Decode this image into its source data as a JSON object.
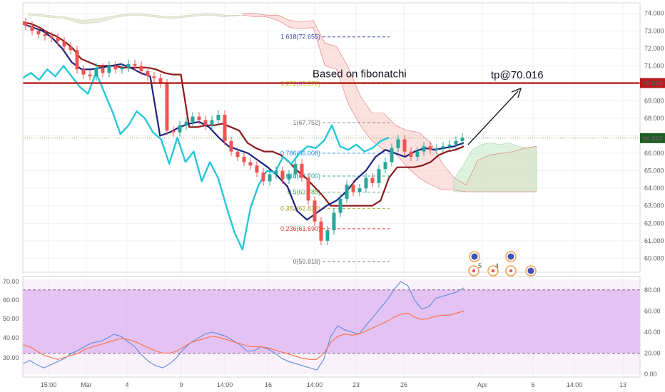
{
  "chart_data": [
    {
      "type": "candlestick",
      "title": "",
      "ylim": [
        59.2,
        74.6
      ],
      "grid": true,
      "y_ticks": [
        "74.000",
        "73.000",
        "72.000",
        "71.000",
        "70.000",
        "69.000",
        "68.000",
        "67.000",
        "66.000",
        "65.000",
        "64.000",
        "63.000",
        "62.000",
        "61.000",
        "60.000"
      ],
      "x_ticks": [
        "15:00",
        "Mar",
        "4",
        "9",
        "14:00",
        "16",
        "14:00",
        "23",
        "26",
        "Apr",
        "6",
        "14:00",
        "13"
      ],
      "price_badges": [
        {
          "label": "70.016",
          "value": 70.016,
          "color": "#b71c1c"
        },
        {
          "label": "66.867",
          "value": 66.867,
          "color": "#1b5e20"
        }
      ],
      "fibonacci": [
        {
          "label": "1.618(72.655)",
          "value": 72.655,
          "color": "#3949ab"
        },
        {
          "label": "1.272(69.970)",
          "value": 69.97,
          "color": "#b8b800"
        },
        {
          "label": "1(67.752)",
          "value": 67.752,
          "color": "#757575"
        },
        {
          "label": "0.786(66.008)",
          "value": 66.008,
          "color": "#1e88e5"
        },
        {
          "label": "0.618(64.700)",
          "value": 64.7,
          "color": "#26a69a"
        },
        {
          "label": "0.5(63.785)",
          "value": 63.785,
          "color": "#43a047"
        },
        {
          "label": "0.382(62.838)",
          "value": 62.838,
          "color": "#9e9d24"
        },
        {
          "label": "0.236(61.690)",
          "value": 61.69,
          "color": "#e53935"
        },
        {
          "label": "0(59.818)",
          "value": 59.818,
          "color": "#757575"
        }
      ],
      "annotations": [
        {
          "text": "Based on fibonatchi"
        },
        {
          "text": "tp@70.016"
        }
      ],
      "event_markers": [
        "5",
        "4"
      ],
      "series": [
        {
          "name": "",
          "kind": "candles_close",
          "values": [
            73.3,
            73.0,
            72.8,
            72.7,
            72.6,
            72.4,
            72.1,
            71.9,
            70.8,
            70.5,
            70.4,
            70.9,
            70.6,
            71.0,
            70.8,
            70.9,
            71.1,
            71.0,
            70.7,
            70.4,
            70.3,
            70.0,
            67.3,
            67.2,
            67.6,
            67.8,
            68.1,
            67.9,
            67.6,
            67.9,
            68.2,
            66.7,
            66.1,
            65.8,
            65.5,
            65.3,
            64.9,
            64.4,
            64.8,
            65.0,
            64.5,
            64.8,
            65.4,
            64.6,
            63.3,
            62.1,
            61.0,
            61.6,
            62.6,
            63.4,
            64.2,
            63.8,
            64.0,
            64.6,
            64.3,
            65.1,
            65.5,
            66.3,
            66.8,
            66.1,
            65.8,
            66.1,
            66.4,
            66.2,
            66.3,
            66.4,
            66.5,
            66.7,
            66.9
          ]
        },
        {
          "name": "",
          "kind": "baseline",
          "color": "#8b1a1a",
          "values": [
            73.5,
            73.4,
            73.2,
            72.9,
            72.7,
            72.4,
            72.0,
            71.4,
            71.2,
            71.0,
            71.0,
            71.0,
            70.9,
            70.9,
            70.9,
            70.9,
            70.8,
            70.6,
            70.5,
            70.5,
            67.5,
            67.5,
            67.6,
            67.6,
            67.7,
            67.5,
            67.3,
            66.6,
            66.3,
            66.1,
            66.1,
            65.9,
            65.5,
            65.0,
            64.6,
            64.1,
            63.6,
            63.0,
            63.0,
            63.0,
            63.0,
            63.0,
            63.0,
            63.3,
            64.6,
            65.2,
            65.2,
            65.2,
            65.3,
            65.5,
            65.9,
            66.1,
            66.2,
            66.4
          ]
        },
        {
          "name": "",
          "kind": "conversion",
          "color": "#1a237e",
          "values": [
            73.4,
            73.2,
            73.0,
            72.6,
            72.0,
            71.2,
            70.8,
            70.8,
            70.9,
            71.0,
            71.1,
            70.9,
            70.6,
            70.4,
            67.0,
            67.2,
            67.5,
            67.7,
            67.8,
            67.5,
            66.9,
            66.4,
            66.2,
            66.0,
            65.6,
            65.2,
            64.7,
            64.1,
            62.7,
            62.2,
            62.6,
            63.0,
            63.3,
            63.8,
            64.5,
            65.0,
            65.8,
            66.2,
            66.0,
            65.8,
            66.1,
            66.3,
            66.2,
            66.3,
            66.4,
            66.6
          ]
        },
        {
          "name": "",
          "kind": "lagging",
          "color": "#26c6da",
          "values": [
            70.3,
            70.6,
            70.2,
            70.8,
            70.4,
            71.0,
            70.4,
            69.8,
            69.4,
            70.6,
            69.5,
            68.4,
            67.1,
            67.6,
            68.4,
            68.0,
            67.2,
            66.8,
            65.4,
            66.9,
            65.5,
            66.1,
            64.4,
            65.5,
            64.6,
            63.0,
            61.5,
            60.5,
            62.9,
            64.2,
            65.0,
            64.9,
            65.8,
            65.4,
            66.0,
            66.4,
            66.3,
            66.7,
            67.6,
            66.4,
            66.2,
            66.5,
            66.1,
            66.3,
            66.7,
            66.9
          ]
        }
      ],
      "cloud": {
        "upper": [
          74.0,
          74.0,
          73.9,
          73.9,
          73.6,
          73.5,
          73.6,
          72.3,
          72.1,
          70.9,
          69.3,
          68.3,
          68.3,
          67.6,
          67.3,
          67.2,
          66.6,
          65.4,
          64.6,
          64.2,
          65.6,
          65.9,
          66.0,
          66.1,
          66.3,
          66.4
        ],
        "lower": [
          73.9,
          73.8,
          73.8,
          73.6,
          73.2,
          73.1,
          73.2,
          71.0,
          70.8,
          68.8,
          67.6,
          66.7,
          66.2,
          66.0,
          65.2,
          64.6,
          64.2,
          63.9,
          63.9,
          63.8,
          63.8,
          63.8,
          63.8,
          63.8,
          63.8,
          63.8
        ]
      }
    },
    {
      "type": "line",
      "title": "",
      "ylim": [
        0,
        90
      ],
      "y_ticks": [
        "80.00",
        "60.00",
        "40.00",
        "20.00",
        "0.00"
      ],
      "left_ticks": [
        "70.00",
        "60.00",
        "50.00",
        "40.00",
        "30.00"
      ],
      "upper_band": 80,
      "lower_band": 20,
      "series": [
        {
          "name": "",
          "color": "#5b8ed6",
          "values": [
            10,
            13,
            9,
            6,
            9,
            12,
            15,
            20,
            23,
            27,
            30,
            31,
            34,
            38,
            36,
            31,
            26,
            18,
            12,
            8,
            6,
            10,
            16,
            24,
            30,
            34,
            38,
            40,
            38,
            36,
            32,
            28,
            22,
            22,
            26,
            24,
            20,
            15,
            12,
            10,
            8,
            6,
            4,
            14,
            36,
            46,
            42,
            40,
            38,
            46,
            54,
            62,
            70,
            80,
            88,
            84,
            70,
            62,
            64,
            72,
            74,
            76,
            78,
            82
          ]
        },
        {
          "name": "",
          "color": "#ff7043",
          "values": [
            28,
            26,
            22,
            18,
            16,
            14,
            16,
            18,
            20,
            24,
            26,
            28,
            30,
            32,
            34,
            33,
            31,
            28,
            25,
            22,
            20,
            20,
            22,
            26,
            30,
            32,
            34,
            36,
            35,
            33,
            31,
            29,
            27,
            26,
            26,
            25,
            23,
            21,
            19,
            17,
            15,
            14,
            14,
            20,
            30,
            36,
            38,
            37,
            38,
            41,
            44,
            47,
            50,
            54,
            57,
            58,
            54,
            52,
            53,
            55,
            56,
            56,
            58,
            60
          ]
        }
      ]
    }
  ]
}
